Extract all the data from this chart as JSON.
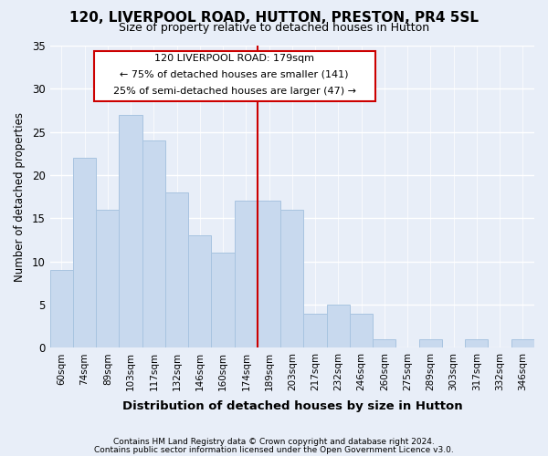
{
  "title": "120, LIVERPOOL ROAD, HUTTON, PRESTON, PR4 5SL",
  "subtitle": "Size of property relative to detached houses in Hutton",
  "xlabel": "Distribution of detached houses by size in Hutton",
  "ylabel": "Number of detached properties",
  "categories": [
    "60sqm",
    "74sqm",
    "89sqm",
    "103sqm",
    "117sqm",
    "132sqm",
    "146sqm",
    "160sqm",
    "174sqm",
    "189sqm",
    "203sqm",
    "217sqm",
    "232sqm",
    "246sqm",
    "260sqm",
    "275sqm",
    "289sqm",
    "303sqm",
    "317sqm",
    "332sqm",
    "346sqm"
  ],
  "values": [
    9,
    22,
    16,
    27,
    24,
    18,
    13,
    11,
    17,
    17,
    16,
    4,
    5,
    4,
    1,
    0,
    1,
    0,
    1,
    0,
    1
  ],
  "bar_color": "#c8d9ee",
  "bar_edge_color": "#a8c4e0",
  "background_color": "#e8eef8",
  "grid_color": "#ffffff",
  "red_line_index": 8,
  "annotation_line1": "120 LIVERPOOL ROAD: 179sqm",
  "annotation_line2": "← 75% of detached houses are smaller (141)",
  "annotation_line3": "25% of semi-detached houses are larger (47) →",
  "ylim": [
    0,
    35
  ],
  "yticks": [
    0,
    5,
    10,
    15,
    20,
    25,
    30,
    35
  ],
  "footnote1": "Contains HM Land Registry data © Crown copyright and database right 2024.",
  "footnote2": "Contains public sector information licensed under the Open Government Licence v3.0."
}
